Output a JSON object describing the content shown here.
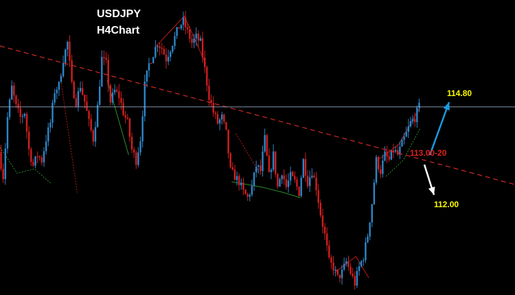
{
  "header": {
    "symbol": "USDJPY",
    "timeframe": "H4Chart"
  },
  "annotations": {
    "target_up": "114.80",
    "resistance_zone": "113.00-20",
    "target_down": "112.00"
  },
  "colors": {
    "background": "#000000",
    "bull_candle": "#2f86c8",
    "bear_candle": "#d11f1f",
    "trendline": "#d42a26",
    "horizontal_level": "#8fa9c2",
    "up_arrow": "#1a9be0",
    "down_arrow": "#ffffff",
    "support_line": "#2fa02f",
    "label_yellow": "#ffff00",
    "label_red": "#e0201c"
  },
  "chart_data": {
    "type": "candlestick",
    "title": "USDJPY",
    "subtitle": "H4Chart",
    "xlabel": "",
    "ylabel": "",
    "horizontal_level": 113.0,
    "ylim": [
      111.24,
      114.0
    ],
    "close_path": [
      112.58,
      112.35,
      112.9,
      113.18,
      113.0,
      112.9,
      112.95,
      112.6,
      112.45,
      112.55,
      112.5,
      112.7,
      112.85,
      113.15,
      113.2,
      113.45,
      113.6,
      113.2,
      113.05,
      113.2,
      113.05,
      112.85,
      112.7,
      113.0,
      113.45,
      113.4,
      113.05,
      113.15,
      113.1,
      112.95,
      112.85,
      112.6,
      112.5,
      112.7,
      113.2,
      113.4,
      113.5,
      113.6,
      113.55,
      113.45,
      113.55,
      113.65,
      113.75,
      113.8,
      113.7,
      113.6,
      113.65,
      113.6,
      113.35,
      113.1,
      112.95,
      112.85,
      112.9,
      112.75,
      112.4,
      112.35,
      112.3,
      112.2,
      112.15,
      112.25,
      112.45,
      112.4,
      112.7,
      112.35,
      112.55,
      112.25,
      112.4,
      112.25,
      112.35,
      112.3,
      112.2,
      112.5,
      112.3,
      112.4,
      112.25,
      112.0,
      111.8,
      111.55,
      111.5,
      111.4,
      111.45,
      111.55,
      111.45,
      111.35,
      111.5,
      111.6,
      111.8,
      112.1,
      112.5,
      112.4,
      112.55,
      112.5,
      112.6,
      112.55,
      112.65,
      112.75,
      112.85,
      112.9,
      113.0
    ]
  }
}
